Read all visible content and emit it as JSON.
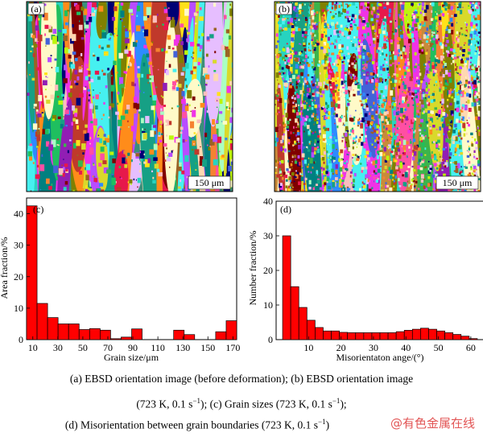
{
  "panels": {
    "a": {
      "label": "(a)",
      "scalebar": "150 μm"
    },
    "b": {
      "label": "(b)",
      "scalebar": "150 μm"
    }
  },
  "chart_data": [
    {
      "type": "bar",
      "label": "(c)",
      "xlabel": "Grain size/μm",
      "ylabel": "Area fraction/%",
      "xlim": [
        5,
        173
      ],
      "ylim": [
        0,
        45
      ],
      "xticks": [
        10,
        30,
        50,
        70,
        90,
        110,
        130,
        150,
        170
      ],
      "yticks": [
        0,
        10,
        20,
        30,
        40
      ],
      "bin_width": 8.4,
      "x": [
        9.2,
        17.6,
        26,
        34.4,
        42.8,
        51.2,
        59.6,
        68,
        76.4,
        84.8,
        93.2,
        101.6,
        110,
        118.4,
        126.8,
        135.2,
        143.6,
        152,
        160.4,
        168.8
      ],
      "values": [
        42.5,
        11.5,
        7,
        5,
        5,
        3.2,
        3.5,
        3,
        0.3,
        0.8,
        3.4,
        0,
        0,
        0,
        3,
        1.6,
        0,
        0,
        2.5,
        6
      ]
    },
    {
      "type": "bar",
      "label": "(d)",
      "xlabel": "Misorientaton ange/(°)",
      "ylabel": "Number fraction/%",
      "xlim": [
        0,
        64
      ],
      "ylim": [
        0,
        40
      ],
      "xticks": [
        10,
        20,
        30,
        40,
        50,
        60
      ],
      "yticks": [
        0,
        10,
        20,
        30,
        40
      ],
      "bin_width": 2.5,
      "x": [
        3.25,
        5.75,
        8.25,
        10.75,
        13.25,
        15.75,
        18.25,
        20.75,
        23.25,
        25.75,
        28.25,
        30.75,
        33.25,
        35.75,
        38.25,
        40.75,
        43.25,
        45.75,
        48.25,
        50.75,
        53.25,
        55.75,
        58.25,
        60.75
      ],
      "values": [
        30,
        15.3,
        9.3,
        5.6,
        3.5,
        2.5,
        2.5,
        2.1,
        2,
        2,
        2,
        2,
        2,
        2,
        2.3,
        2.7,
        3,
        3.3,
        3,
        2.5,
        2,
        1.5,
        1,
        0.3
      ]
    }
  ],
  "caption": {
    "line1": "(a) EBSD orientation image (before deformation); (b) EBSD orientation image",
    "line2_a": "(723 K, 0.1 s",
    "line2_b": "); (c) Grain sizes (723 K, 0.1 s",
    "line2_c": ");",
    "line3_a": "(d) Misorientation between grain boundaries (723 K, 0.1 s",
    "line3_b": ")",
    "sup": "−1"
  },
  "watermark": "@有色金属在线"
}
